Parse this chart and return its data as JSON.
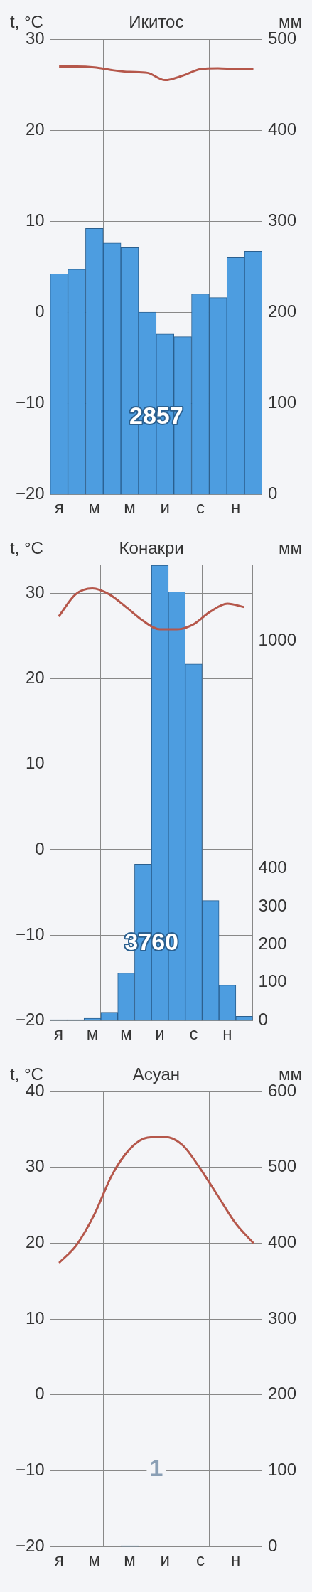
{
  "chart_data": [
    {
      "type": "bar",
      "title": "Икитос",
      "ylabel": "t, °C",
      "y2label": "мм",
      "categories": [
        "я",
        null,
        "м",
        null,
        "м",
        null,
        "и",
        null,
        "с",
        null,
        "н",
        null
      ],
      "series": [
        {
          "type": "bar",
          "axis": "y2",
          "color": "#4d9de0",
          "values": [
            242,
            247,
            292,
            276,
            271,
            200,
            176,
            173,
            220,
            216,
            260,
            267
          ]
        },
        {
          "type": "line",
          "color": "#b5574b",
          "values": [
            27.0,
            27.0,
            26.9,
            26.6,
            26.4,
            26.3,
            25.5,
            26.0,
            26.7,
            26.8,
            26.7,
            26.7
          ]
        }
      ],
      "ylim": [
        -20,
        30
      ],
      "yticks": [
        -20,
        -10,
        0,
        10,
        20,
        30
      ],
      "y2lim": [
        0,
        500
      ],
      "y2ticks": [
        0,
        100,
        200,
        300,
        400,
        500
      ],
      "grid": true,
      "legend": false,
      "annotations": [
        "2857"
      ]
    },
    {
      "type": "bar",
      "title": "Конакри",
      "ylabel": "t, °C",
      "y2label": "мм",
      "categories": [
        "я",
        null,
        "м",
        null,
        "м",
        null,
        "и",
        null,
        "с",
        null,
        "н",
        null
      ],
      "series": [
        {
          "type": "bar",
          "axis": "y2",
          "color": "#4d9de0",
          "values": [
            2,
            2,
            6,
            22,
            125,
            412,
            1200,
            1130,
            940,
            316,
            93,
            11
          ]
        },
        {
          "type": "line",
          "color": "#b5574b",
          "values": [
            27.3,
            29.9,
            30.6,
            29.9,
            28.4,
            26.8,
            25.8,
            25.8,
            26.4,
            27.9,
            28.8,
            28.4
          ]
        }
      ],
      "ylim": [
        -20,
        33.3
      ],
      "yticks": [
        -20,
        -10,
        0,
        10,
        20,
        30
      ],
      "y2lim": [
        0,
        1200
      ],
      "y2ticks": [
        0,
        100,
        200,
        300,
        400,
        1000
      ],
      "grid": true,
      "legend": false,
      "annotations": [
        "3760"
      ]
    },
    {
      "type": "bar",
      "title": "Асуан",
      "ylabel": "t, °C",
      "y2label": "мм",
      "categories": [
        "я",
        null,
        "м",
        null,
        "м",
        null,
        "и",
        null,
        "с",
        null,
        "н",
        null
      ],
      "series": [
        {
          "type": "bar",
          "axis": "y2",
          "color": "#4d9de0",
          "values": [
            0,
            0,
            0,
            0,
            1,
            0,
            0,
            0,
            0,
            0,
            0,
            0
          ]
        },
        {
          "type": "line",
          "color": "#b5574b",
          "values": [
            17.4,
            19.8,
            23.8,
            29.0,
            32.4,
            33.9,
            34.0,
            32.9,
            29.8,
            26.2,
            22.6,
            20.0
          ]
        }
      ],
      "ylim": [
        -20,
        40
      ],
      "yticks": [
        -20,
        -10,
        0,
        10,
        20,
        30,
        40
      ],
      "y2lim": [
        0,
        600
      ],
      "y2ticks": [
        0,
        100,
        200,
        300,
        400,
        500,
        600
      ],
      "grid": true,
      "legend": false,
      "annotations": [
        "1"
      ]
    }
  ]
}
